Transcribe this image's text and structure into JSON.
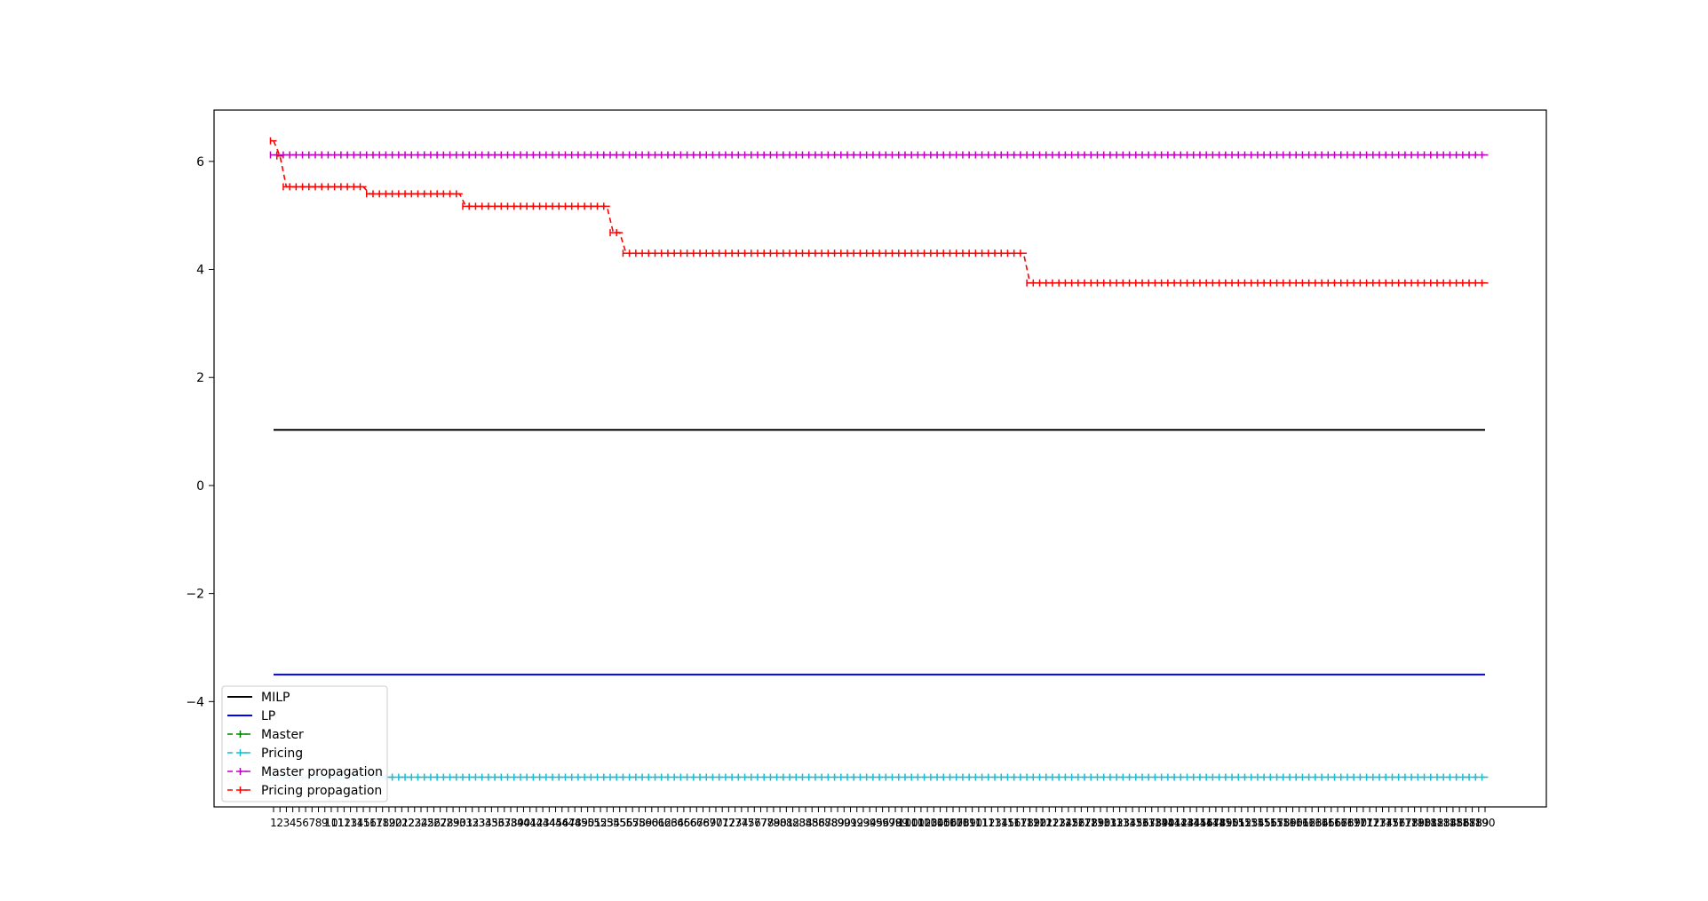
{
  "chart_data": {
    "type": "line",
    "x_start": 1,
    "x_end": 190,
    "yticks": [
      -4,
      -2,
      0,
      2,
      4,
      6
    ],
    "ylim": [
      -5.95,
      6.95
    ],
    "legend_position": "lower-left",
    "series": [
      {
        "name": "MILP",
        "style": "solid",
        "color": "#000000",
        "marker": "none",
        "y": 1.03
      },
      {
        "name": "LP",
        "style": "solid",
        "color": "#0000ff",
        "marker": "none",
        "y": -3.5
      },
      {
        "name": "Master",
        "style": "dashed",
        "color": "#008000",
        "marker": "tick",
        "y": null
      },
      {
        "name": "Pricing",
        "style": "dashed",
        "color": "#17becf",
        "marker": "tick",
        "y": -5.4
      },
      {
        "name": "Master propagation",
        "style": "dashed",
        "color": "#bf00bf",
        "marker": "tick",
        "y": 6.12
      },
      {
        "name": "Pricing propagation",
        "style": "dashed",
        "color": "#ff0000",
        "marker": "tick",
        "steps": [
          {
            "from": 1,
            "to": 1,
            "y": 6.38
          },
          {
            "from": 2,
            "to": 2,
            "y": 6.1
          },
          {
            "from": 3,
            "to": 15,
            "y": 5.53
          },
          {
            "from": 16,
            "to": 30,
            "y": 5.4
          },
          {
            "from": 31,
            "to": 53,
            "y": 5.17
          },
          {
            "from": 54,
            "to": 55,
            "y": 4.68
          },
          {
            "from": 56,
            "to": 118,
            "y": 4.3
          },
          {
            "from": 119,
            "to": 190,
            "y": 3.75
          }
        ]
      }
    ]
  }
}
